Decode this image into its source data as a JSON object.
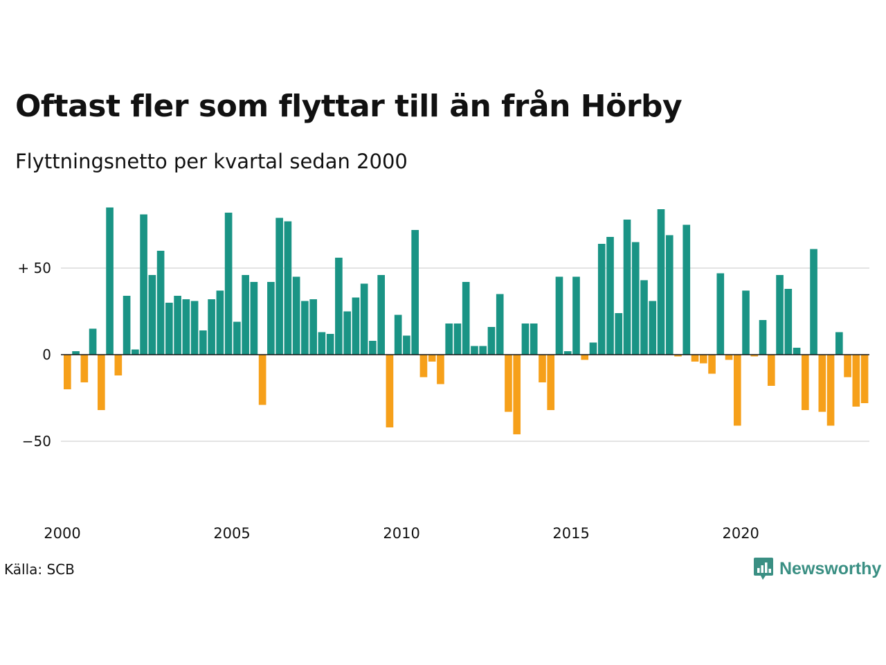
{
  "chart_data": {
    "type": "bar",
    "title": "Oftast fler som flyttar till än från Hörby",
    "subtitle": "Flyttningsnetto per kvartal sedan 2000",
    "xlabel": "",
    "ylabel": "",
    "x_start_year": 2000,
    "x_tick_labels": [
      "2000",
      "2005",
      "2010",
      "2015",
      "2020"
    ],
    "y_tick_labels": [
      "+ 50",
      "0",
      "−50"
    ],
    "y_ticks": [
      50,
      0,
      -50
    ],
    "ylim": [
      -85,
      90
    ],
    "grid": true,
    "legend": "none",
    "colors": {
      "positive": "#1a9485",
      "negative": "#f6a01a",
      "grid": "#e3e3e3",
      "zero_line": "#111111"
    },
    "values": [
      -20,
      2,
      -16,
      15,
      -32,
      85,
      -12,
      34,
      3,
      81,
      46,
      60,
      30,
      34,
      32,
      31,
      14,
      32,
      37,
      82,
      19,
      46,
      42,
      -29,
      42,
      79,
      77,
      45,
      31,
      32,
      13,
      12,
      56,
      25,
      33,
      41,
      8,
      46,
      -42,
      23,
      11,
      72,
      -13,
      -4,
      -17,
      18,
      18,
      42,
      5,
      5,
      16,
      35,
      -33,
      -46,
      18,
      18,
      -16,
      -32,
      45,
      2,
      45,
      -3,
      7,
      64,
      68,
      24,
      78,
      65,
      43,
      31,
      84,
      69,
      -1,
      75,
      -4,
      -5,
      -11,
      47,
      -3,
      -41,
      37,
      -1,
      20,
      -18,
      46,
      38,
      4,
      -32,
      61,
      -33,
      -41,
      13,
      -13,
      -30,
      -28
    ]
  },
  "source_label": "Källa: SCB",
  "brand": {
    "name": "Newsworthy",
    "icon": "bar-chart-speech-bubble-icon"
  }
}
